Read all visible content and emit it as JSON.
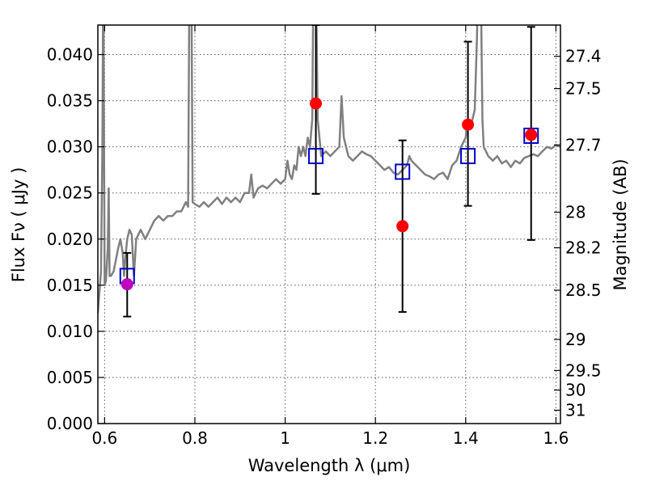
{
  "chart_data": {
    "type": "scatter",
    "title": "",
    "xlabel": "Wavelength  λ (μm)",
    "ylabel": "Flux  Fν  ( μJy )",
    "ylabel_right": "Magnitude (AB)",
    "xlim": [
      0.585,
      1.61
    ],
    "ylim": [
      0.0,
      0.0432
    ],
    "grid": true,
    "x_ticks": [
      {
        "value": 0.6,
        "label": "0.6"
      },
      {
        "value": 0.8,
        "label": "0.8"
      },
      {
        "value": 1.0,
        "label": "1"
      },
      {
        "value": 1.2,
        "label": "1.2"
      },
      {
        "value": 1.4,
        "label": "1.4"
      },
      {
        "value": 1.6,
        "label": "1.6"
      }
    ],
    "y_ticks": [
      {
        "value": 0.0,
        "label": "0.000"
      },
      {
        "value": 0.005,
        "label": "0.005"
      },
      {
        "value": 0.01,
        "label": "0.010"
      },
      {
        "value": 0.015,
        "label": "0.015"
      },
      {
        "value": 0.02,
        "label": "0.020"
      },
      {
        "value": 0.025,
        "label": "0.025"
      },
      {
        "value": 0.03,
        "label": "0.030"
      },
      {
        "value": 0.035,
        "label": "0.035"
      },
      {
        "value": 0.04,
        "label": "0.040"
      }
    ],
    "right_ticks": [
      {
        "mag": 27.4,
        "label": "27.4"
      },
      {
        "mag": 27.5,
        "label": "27.5"
      },
      {
        "mag": 27.7,
        "label": "27.7"
      },
      {
        "mag": 28.0,
        "label": "28"
      },
      {
        "mag": 28.2,
        "label": "28.2"
      },
      {
        "mag": 28.5,
        "label": "28.5"
      },
      {
        "mag": 29.0,
        "label": "29"
      },
      {
        "mag": 29.5,
        "label": "29.5"
      },
      {
        "mag": 30.0,
        "label": "30"
      },
      {
        "mag": 31.0,
        "label": "31"
      }
    ],
    "colors": {
      "spectrum": "#808080",
      "observed": "#ff0000",
      "observed_first": "#bf00bf",
      "model": "#0000cc",
      "errorbar": "#000000",
      "grid": "#555555"
    },
    "spectrum": [
      [
        0.585,
        0.012
      ],
      [
        0.592,
        0.0165
      ],
      [
        0.595,
        0.03
      ],
      [
        0.597,
        0.05
      ],
      [
        0.6,
        0.015
      ],
      [
        0.603,
        0.0155
      ],
      [
        0.607,
        0.019
      ],
      [
        0.609,
        0.0255
      ],
      [
        0.611,
        0.016
      ],
      [
        0.614,
        0.016
      ],
      [
        0.62,
        0.0165
      ],
      [
        0.63,
        0.019
      ],
      [
        0.635,
        0.02
      ],
      [
        0.64,
        0.0185
      ],
      [
        0.643,
        0.016
      ],
      [
        0.646,
        0.018
      ],
      [
        0.65,
        0.02
      ],
      [
        0.655,
        0.021
      ],
      [
        0.66,
        0.0205
      ],
      [
        0.665,
        0.016
      ],
      [
        0.67,
        0.02
      ],
      [
        0.68,
        0.021
      ],
      [
        0.69,
        0.02
      ],
      [
        0.7,
        0.021
      ],
      [
        0.71,
        0.022
      ],
      [
        0.72,
        0.0225
      ],
      [
        0.73,
        0.022
      ],
      [
        0.74,
        0.0225
      ],
      [
        0.75,
        0.0225
      ],
      [
        0.76,
        0.023
      ],
      [
        0.77,
        0.023
      ],
      [
        0.78,
        0.024
      ],
      [
        0.785,
        0.0235
      ],
      [
        0.788,
        0.05
      ],
      [
        0.792,
        0.05
      ],
      [
        0.795,
        0.024
      ],
      [
        0.8,
        0.0238
      ],
      [
        0.81,
        0.0235
      ],
      [
        0.82,
        0.024
      ],
      [
        0.83,
        0.0235
      ],
      [
        0.84,
        0.024
      ],
      [
        0.85,
        0.0245
      ],
      [
        0.86,
        0.0238
      ],
      [
        0.87,
        0.0245
      ],
      [
        0.88,
        0.024
      ],
      [
        0.89,
        0.0245
      ],
      [
        0.9,
        0.024
      ],
      [
        0.91,
        0.025
      ],
      [
        0.92,
        0.025
      ],
      [
        0.925,
        0.027
      ],
      [
        0.93,
        0.0245
      ],
      [
        0.94,
        0.0255
      ],
      [
        0.95,
        0.0258
      ],
      [
        0.96,
        0.0255
      ],
      [
        0.97,
        0.026
      ],
      [
        0.98,
        0.0265
      ],
      [
        0.99,
        0.026
      ],
      [
        1.0,
        0.0265
      ],
      [
        1.005,
        0.0285
      ],
      [
        1.01,
        0.027
      ],
      [
        1.015,
        0.0265
      ],
      [
        1.02,
        0.028
      ],
      [
        1.025,
        0.0275
      ],
      [
        1.03,
        0.03
      ],
      [
        1.035,
        0.029
      ],
      [
        1.04,
        0.03
      ],
      [
        1.045,
        0.029
      ],
      [
        1.05,
        0.031
      ],
      [
        1.055,
        0.03
      ],
      [
        1.06,
        0.033
      ],
      [
        1.063,
        0.05
      ],
      [
        1.068,
        0.05
      ],
      [
        1.072,
        0.033
      ],
      [
        1.08,
        0.029
      ],
      [
        1.09,
        0.0295
      ],
      [
        1.1,
        0.029
      ],
      [
        1.11,
        0.0295
      ],
      [
        1.12,
        0.03
      ],
      [
        1.125,
        0.0355
      ],
      [
        1.13,
        0.031
      ],
      [
        1.14,
        0.029
      ],
      [
        1.15,
        0.0285
      ],
      [
        1.16,
        0.029
      ],
      [
        1.17,
        0.0295
      ],
      [
        1.18,
        0.0292
      ],
      [
        1.19,
        0.029
      ],
      [
        1.2,
        0.0285
      ],
      [
        1.21,
        0.028
      ],
      [
        1.22,
        0.0275
      ],
      [
        1.23,
        0.0278
      ],
      [
        1.24,
        0.0272
      ],
      [
        1.25,
        0.027
      ],
      [
        1.26,
        0.0275
      ],
      [
        1.27,
        0.028
      ],
      [
        1.275,
        0.029
      ],
      [
        1.28,
        0.0285
      ],
      [
        1.29,
        0.028
      ],
      [
        1.3,
        0.0275
      ],
      [
        1.31,
        0.027
      ],
      [
        1.32,
        0.0268
      ],
      [
        1.33,
        0.0265
      ],
      [
        1.34,
        0.027
      ],
      [
        1.35,
        0.0272
      ],
      [
        1.36,
        0.0265
      ],
      [
        1.37,
        0.028
      ],
      [
        1.38,
        0.0285
      ],
      [
        1.39,
        0.03
      ],
      [
        1.4,
        0.031
      ],
      [
        1.405,
        0.033
      ],
      [
        1.41,
        0.032
      ],
      [
        1.42,
        0.034
      ],
      [
        1.425,
        0.042
      ],
      [
        1.428,
        0.05
      ],
      [
        1.433,
        0.05
      ],
      [
        1.437,
        0.033
      ],
      [
        1.44,
        0.03
      ],
      [
        1.45,
        0.029
      ],
      [
        1.46,
        0.0285
      ],
      [
        1.47,
        0.029
      ],
      [
        1.48,
        0.0282
      ],
      [
        1.49,
        0.0285
      ],
      [
        1.5,
        0.0278
      ],
      [
        1.51,
        0.0285
      ],
      [
        1.52,
        0.0282
      ],
      [
        1.53,
        0.0288
      ],
      [
        1.54,
        0.029
      ],
      [
        1.55,
        0.0292
      ],
      [
        1.56,
        0.029
      ],
      [
        1.57,
        0.0295
      ],
      [
        1.58,
        0.03
      ],
      [
        1.59,
        0.0298
      ],
      [
        1.6,
        0.0302
      ],
      [
        1.61,
        0.03
      ]
    ],
    "observed_points": [
      {
        "x": 0.65,
        "y": 0.0151,
        "yerr_low": 0.0116,
        "yerr_high": 0.0185
      },
      {
        "x": 1.068,
        "y": 0.0347,
        "yerr_low": 0.0249,
        "yerr_high": 0.0432
      },
      {
        "x": 1.26,
        "y": 0.0214,
        "yerr_low": 0.0121,
        "yerr_high": 0.0307
      },
      {
        "x": 1.405,
        "y": 0.0324,
        "yerr_low": 0.0236,
        "yerr_high": 0.0414
      },
      {
        "x": 1.545,
        "y": 0.0313,
        "yerr_low": 0.0199,
        "yerr_high": 0.043
      }
    ],
    "model_points": [
      {
        "x": 0.65,
        "y": 0.016
      },
      {
        "x": 1.068,
        "y": 0.029
      },
      {
        "x": 1.26,
        "y": 0.0273
      },
      {
        "x": 1.405,
        "y": 0.029
      },
      {
        "x": 1.545,
        "y": 0.0312
      }
    ]
  }
}
